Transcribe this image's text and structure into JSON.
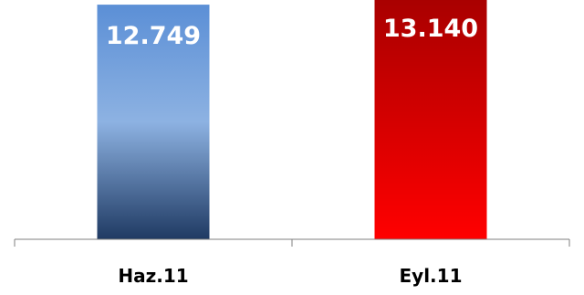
{
  "chart_data": {
    "type": "bar",
    "categories": [
      "Haz.11",
      "Eyl.11"
    ],
    "values": [
      12749,
      13140
    ],
    "value_labels": [
      "12.749",
      "13.140"
    ],
    "title": "",
    "xlabel": "",
    "ylabel": "",
    "ylim": [
      0,
      13400
    ],
    "grid": false,
    "legend": "none",
    "colors": {
      "Haz.11": {
        "top": "#5b8fd6",
        "mid": "#8db2e2",
        "bottom": "#1f3a63"
      },
      "Eyl.11": {
        "top": "#a80000",
        "bottom": "#ff0000"
      },
      "axis": "#7f7f7f"
    }
  }
}
